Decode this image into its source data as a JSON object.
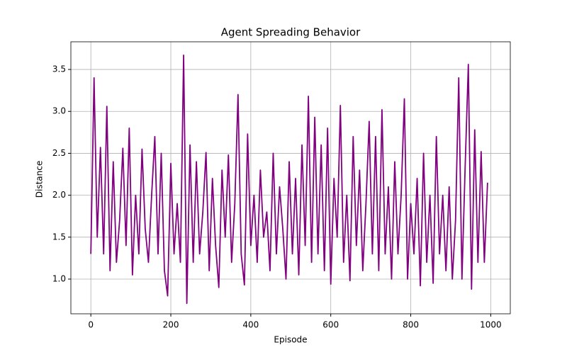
{
  "chart_data": {
    "type": "line",
    "title": "Agent Spreading Behavior",
    "x_label": "Episode",
    "y_label": "Distance",
    "x": [
      0,
      8,
      16,
      24,
      32,
      40,
      48,
      56,
      64,
      72,
      80,
      88,
      96,
      104,
      112,
      120,
      128,
      136,
      144,
      152,
      160,
      168,
      176,
      184,
      192,
      200,
      208,
      216,
      224,
      232,
      240,
      248,
      256,
      264,
      272,
      280,
      288,
      296,
      304,
      312,
      320,
      328,
      336,
      344,
      352,
      360,
      368,
      376,
      384,
      392,
      400,
      408,
      416,
      424,
      432,
      440,
      448,
      456,
      464,
      472,
      480,
      488,
      496,
      504,
      512,
      520,
      528,
      536,
      544,
      552,
      560,
      568,
      576,
      584,
      592,
      600,
      608,
      616,
      624,
      632,
      640,
      648,
      656,
      664,
      672,
      680,
      688,
      696,
      704,
      712,
      720,
      728,
      736,
      744,
      752,
      760,
      768,
      776,
      784,
      792,
      800,
      808,
      816,
      824,
      832,
      840,
      848,
      856,
      864,
      872,
      880,
      888,
      896,
      904,
      912,
      920,
      928,
      936,
      944,
      952,
      960,
      968,
      976,
      984,
      992
    ],
    "series": [
      {
        "name": "Distance",
        "color": "#800080",
        "values": [
          1.3,
          3.4,
          1.5,
          2.57,
          1.3,
          3.06,
          1.1,
          2.4,
          1.2,
          1.7,
          2.56,
          1.4,
          2.8,
          1.05,
          2.0,
          1.3,
          2.55,
          1.6,
          1.2,
          2.0,
          2.7,
          1.3,
          2.5,
          1.1,
          0.8,
          2.38,
          1.3,
          1.9,
          1.2,
          3.67,
          0.71,
          2.6,
          1.2,
          2.4,
          1.3,
          1.8,
          2.51,
          1.1,
          2.2,
          1.4,
          0.9,
          2.3,
          1.5,
          2.48,
          1.2,
          1.9,
          3.2,
          1.3,
          0.93,
          2.73,
          1.4,
          2.0,
          1.2,
          2.3,
          1.5,
          1.8,
          1.1,
          2.5,
          1.3,
          2.1,
          1.6,
          1.0,
          2.4,
          1.3,
          2.2,
          1.05,
          2.6,
          1.4,
          3.18,
          1.2,
          2.93,
          1.3,
          2.6,
          1.1,
          2.8,
          0.94,
          2.2,
          1.5,
          3.07,
          1.2,
          2.0,
          0.98,
          2.7,
          1.4,
          2.3,
          1.1,
          1.9,
          2.88,
          1.3,
          2.7,
          1.1,
          3.02,
          1.3,
          2.1,
          1.0,
          2.4,
          1.3,
          2.0,
          3.15,
          1.0,
          1.9,
          1.3,
          2.2,
          0.92,
          2.5,
          1.2,
          2.0,
          0.95,
          2.7,
          1.3,
          2.0,
          1.1,
          2.1,
          1.0,
          1.7,
          3.4,
          1.0,
          2.33,
          3.56,
          0.88,
          2.78,
          1.2,
          2.52,
          1.2,
          2.15
        ]
      }
    ],
    "xlim": [
      -49.95,
      1048.95
    ],
    "ylim": [
      0.586,
      3.83
    ],
    "xticks": [
      0,
      200,
      400,
      600,
      800,
      1000
    ],
    "yticks": [
      {
        "value": 1,
        "label": "1.0"
      },
      {
        "value": 1.5,
        "label": "1.5"
      },
      {
        "value": 2,
        "label": "2.0"
      },
      {
        "value": 2.5,
        "label": "2.5"
      },
      {
        "value": 3,
        "label": "3.0"
      },
      {
        "value": 3.5,
        "label": "3.5"
      }
    ],
    "grid": true
  }
}
